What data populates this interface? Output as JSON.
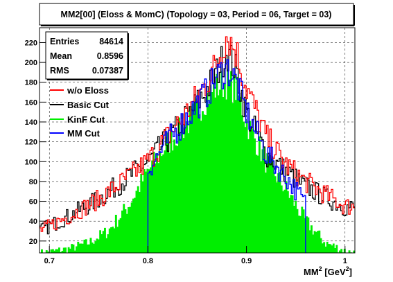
{
  "chart_data": {
    "type": "line",
    "title": "MM2[00] (Eloss & MomC) (Topology = 03, Period = 06, Target = 03)",
    "xlabel": "MM",
    "xlabel_sup": "2",
    "xlabel_unit_open": " [GeV",
    "xlabel_unit_sup": "2",
    "xlabel_unit_close": "]",
    "xlim": [
      0.69,
      1.01
    ],
    "ylim": [
      8,
      235
    ],
    "x_ticks": [
      0.7,
      0.8,
      0.9,
      1.0
    ],
    "x_tick_labels": [
      "0.7",
      "0.8",
      "0.9",
      "1"
    ],
    "y_ticks": [
      20,
      40,
      60,
      80,
      100,
      120,
      140,
      160,
      180,
      200,
      220
    ],
    "y_tick_labels": [
      "20",
      "40",
      "60",
      "80",
      "100",
      "120",
      "140",
      "160",
      "180",
      "200",
      "220"
    ],
    "grid": true,
    "legend_position": "top-left",
    "stats": {
      "entries_label": "Entries",
      "entries_value": "84614",
      "mean_label": "Mean",
      "mean_value": "0.8596",
      "rms_label": "RMS",
      "rms_value": "0.07387"
    },
    "series": [
      {
        "name": "w/o Eloss",
        "color": "#ff0000",
        "x": [
          0.69,
          0.72,
          0.75,
          0.78,
          0.8,
          0.82,
          0.84,
          0.86,
          0.87,
          0.88,
          0.89,
          0.9,
          0.92,
          0.94,
          0.96,
          0.98,
          1.0,
          1.01
        ],
        "y": [
          30,
          45,
          62,
          84,
          100,
          125,
          150,
          180,
          200,
          228,
          210,
          175,
          125,
          97,
          80,
          67,
          55,
          55
        ]
      },
      {
        "name": "Basic Cut",
        "color": "#000000",
        "x": [
          0.69,
          0.72,
          0.75,
          0.78,
          0.8,
          0.82,
          0.84,
          0.86,
          0.87,
          0.88,
          0.89,
          0.9,
          0.92,
          0.94,
          0.96,
          0.98,
          1.0,
          1.01
        ],
        "y": [
          30,
          45,
          62,
          84,
          100,
          122,
          145,
          172,
          190,
          212,
          190,
          150,
          108,
          90,
          75,
          64,
          54,
          54
        ]
      },
      {
        "name": "KinF Cut",
        "color": "#00ee00",
        "x": [
          0.69,
          0.7,
          0.72,
          0.74,
          0.76,
          0.78,
          0.8,
          0.82,
          0.84,
          0.86,
          0.87,
          0.88,
          0.89,
          0.9,
          0.92,
          0.94,
          0.96,
          0.98,
          1.0,
          1.01
        ],
        "y": [
          8,
          9,
          12,
          18,
          30,
          55,
          90,
          118,
          138,
          165,
          175,
          180,
          172,
          140,
          100,
          72,
          40,
          18,
          10,
          8
        ]
      },
      {
        "name": "MM Cut",
        "color": "#0000ff",
        "x": [
          0.8,
          0.82,
          0.84,
          0.86,
          0.87,
          0.88,
          0.89,
          0.9,
          0.92,
          0.94,
          0.96
        ],
        "y": [
          92,
          120,
          145,
          170,
          185,
          195,
          180,
          150,
          108,
          85,
          58
        ]
      }
    ]
  }
}
